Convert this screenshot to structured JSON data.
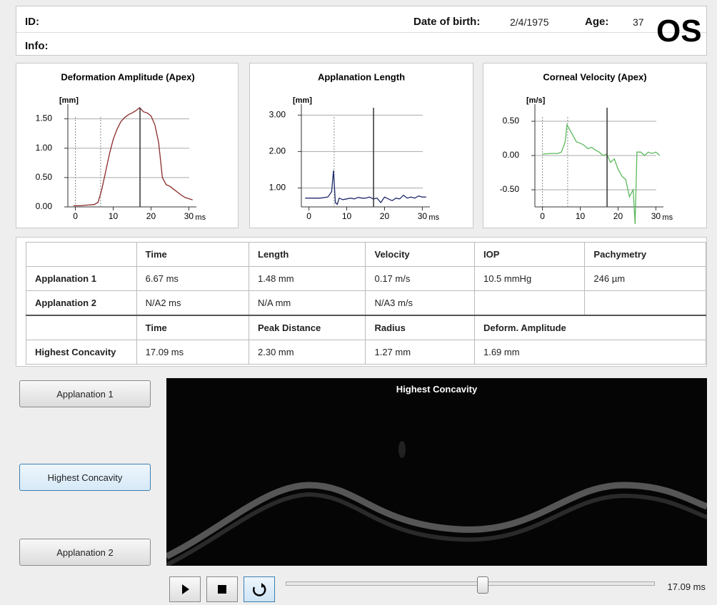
{
  "header": {
    "id_label": "ID:",
    "info_label": "Info:",
    "dob_label": "Date of birth:",
    "dob": "2/4/1975",
    "age_label": "Age:",
    "age": "37",
    "eye": "OS"
  },
  "chart_data": [
    {
      "type": "line",
      "title": "Deformation Amplitude (Apex)",
      "y_label": "[mm]",
      "x_label": "ms",
      "x": [
        -0.5,
        1,
        3,
        5,
        6,
        7,
        8,
        9,
        10,
        11,
        12,
        13,
        14,
        15,
        16,
        17,
        18,
        19,
        20,
        21,
        22,
        23,
        24,
        25,
        26,
        27,
        28,
        29,
        30,
        31
      ],
      "series": [
        {
          "color": "#8b2a2a",
          "values": [
            0.02,
            0.02,
            0.03,
            0.04,
            0.08,
            0.3,
            0.6,
            0.9,
            1.15,
            1.32,
            1.45,
            1.52,
            1.57,
            1.6,
            1.64,
            1.69,
            1.62,
            1.6,
            1.55,
            1.4,
            1.1,
            0.5,
            0.38,
            0.35,
            0.3,
            0.25,
            0.2,
            0.16,
            0.14,
            0.12
          ]
        }
      ],
      "xlim": [
        -2,
        32
      ],
      "ylim": [
        0,
        1.75
      ],
      "xticks": [
        0,
        10,
        20,
        30
      ],
      "yticks": [
        {
          "value": 0,
          "label": "0.00"
        },
        {
          "value": 0.5,
          "label": "0.50"
        },
        {
          "value": 1,
          "label": "1.00"
        },
        {
          "value": 1.5,
          "label": "1.50"
        }
      ],
      "grid": true,
      "dashed_x": [
        0,
        6.67
      ],
      "marker_x": 17.09
    },
    {
      "type": "line",
      "title": "Applanation Length",
      "y_label": "[mm]",
      "x_label": "ms",
      "x": [
        -1,
        1,
        3,
        5,
        6,
        6.5,
        7,
        7.5,
        8,
        9,
        10,
        11,
        12,
        13,
        14,
        15,
        16,
        17,
        18,
        19,
        20,
        21,
        22,
        23,
        24,
        25,
        26,
        27,
        28,
        29,
        30,
        31
      ],
      "series": [
        {
          "color": "#1f2a6b",
          "values": [
            0.72,
            0.72,
            0.72,
            0.75,
            0.9,
            1.48,
            0.6,
            0.55,
            0.72,
            0.68,
            0.7,
            0.72,
            0.7,
            0.74,
            0.72,
            0.72,
            0.75,
            0.7,
            0.72,
            0.6,
            0.75,
            0.7,
            0.65,
            0.72,
            0.7,
            0.8,
            0.72,
            0.75,
            0.72,
            0.78,
            0.75,
            0.75
          ]
        }
      ],
      "xlim": [
        -2,
        32
      ],
      "ylim": [
        0.48,
        3.3
      ],
      "xticks": [
        0,
        10,
        20,
        30
      ],
      "yticks": [
        {
          "value": 1,
          "label": "1.00"
        },
        {
          "value": 2,
          "label": "2.00"
        },
        {
          "value": 3,
          "label": "3.00"
        }
      ],
      "grid": true,
      "dashed_x": [
        6.67
      ],
      "marker_x": 17.09
    },
    {
      "type": "line",
      "title": "Corneal Velocity (Apex)",
      "y_label": "[m/s]",
      "x_label": "ms",
      "x": [
        0,
        2,
        4,
        5,
        6,
        6.5,
        7,
        8,
        9,
        10,
        11,
        12,
        13,
        14,
        15,
        16,
        17,
        18,
        19,
        20,
        21,
        22,
        23,
        24,
        24.5,
        25,
        26,
        27,
        28,
        29,
        30,
        31
      ],
      "series": [
        {
          "color": "#5cb85c",
          "values": [
            0.02,
            0.03,
            0.03,
            0.05,
            0.2,
            0.45,
            0.4,
            0.3,
            0.2,
            0.18,
            0.15,
            0.1,
            0.12,
            0.08,
            0.05,
            0.0,
            0.02,
            -0.1,
            -0.05,
            -0.2,
            -0.3,
            -0.35,
            -0.6,
            -0.5,
            -1.0,
            0.05,
            0.05,
            0.0,
            0.05,
            0.03,
            0.05,
            0.0
          ]
        }
      ],
      "xlim": [
        -2,
        32
      ],
      "ylim": [
        -0.75,
        0.75
      ],
      "xticks": [
        0,
        10,
        20,
        30
      ],
      "yticks": [
        {
          "value": -0.5,
          "label": "-0.50"
        },
        {
          "value": 0,
          "label": "0.00"
        },
        {
          "value": 0.5,
          "label": "0.50"
        }
      ],
      "grid": true,
      "dashed_x": [
        0,
        6.67
      ],
      "marker_x": 17.09
    }
  ],
  "table": {
    "rows": [
      [
        null,
        "Time",
        "Length",
        "Velocity",
        "IOP",
        "Pachymetry"
      ],
      [
        "Applanation 1",
        "6.67 ms",
        "1.48 mm",
        "0.17 m/s",
        "10.5 mmHg",
        "246 µm"
      ],
      [
        "Applanation 2",
        "N/A2 ms",
        "N/A mm",
        "N/A3 m/s",
        null,
        null
      ],
      [
        null,
        "Time",
        "Peak Distance",
        "Radius",
        "Deform. Amplitude"
      ],
      [
        "Highest Concavity",
        "17.09 ms",
        "2.30 mm",
        "1.27 mm",
        "1.69 mm"
      ]
    ]
  },
  "buttons": [
    "Applanation 1",
    "Highest Concavity",
    "Applanation 2"
  ],
  "viewer": {
    "title": "Highest Concavity"
  },
  "player": {
    "time": "17.09 ms"
  }
}
